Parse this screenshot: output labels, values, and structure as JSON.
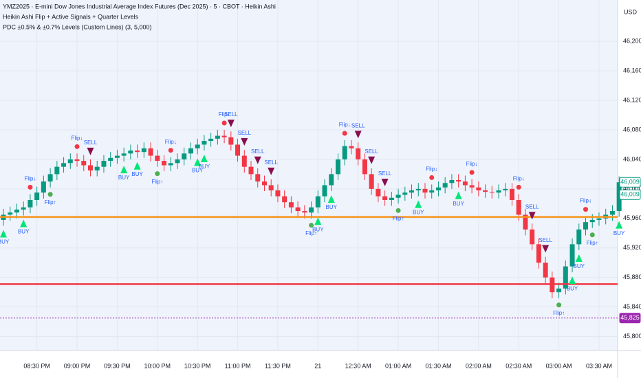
{
  "chart_data": {
    "type": "candlestick",
    "title": "YMZ2025 · E-mini Dow Jones Industrial Average Index Futures (Dec 2025) · 5 · CBOT · Heikin Ashi",
    "indicators": [
      "Heikin Ashi Flip + Active Signals + Quarter Levels",
      "PDC ±0.5% & ±0.7% Levels (Custom Lines) (3, 5,000)"
    ],
    "currency": "USD",
    "categories": [
      null,
      null,
      null,
      null,
      null,
      "08:30 PM",
      null,
      null,
      null,
      null,
      null,
      "09:00 PM",
      null,
      null,
      null,
      null,
      null,
      "09:30 PM",
      null,
      null,
      null,
      null,
      null,
      "10:00 PM",
      null,
      null,
      null,
      null,
      null,
      "10:30 PM",
      null,
      null,
      null,
      null,
      null,
      "11:00 PM",
      null,
      null,
      null,
      null,
      null,
      "11:30 PM",
      null,
      null,
      null,
      null,
      null,
      "21",
      null,
      null,
      null,
      null,
      null,
      "12:30 AM",
      null,
      null,
      null,
      null,
      null,
      "01:00 AM",
      null,
      null,
      null,
      null,
      null,
      "01:30 AM",
      null,
      null,
      null,
      null,
      null,
      "02:00 AM",
      null,
      null,
      null,
      null,
      null,
      "02:30 AM",
      null,
      null,
      null,
      null,
      null,
      "03:00 AM",
      null,
      null,
      null,
      null,
      null,
      "03:30 AM",
      null,
      null,
      null
    ],
    "open": [
      45958,
      45965,
      45968,
      45972,
      45975,
      45985,
      45995,
      46010,
      46020,
      46030,
      46035,
      46040,
      46038,
      46032,
      46025,
      46030,
      46038,
      46042,
      46045,
      46048,
      46052,
      46050,
      46055,
      46045,
      46038,
      46032,
      46035,
      46040,
      46048,
      46055,
      46060,
      46065,
      46068,
      46072,
      46070,
      46060,
      46045,
      46030,
      46020,
      46010,
      46005,
      45998,
      45990,
      45982,
      45975,
      45970,
      45968,
      45975,
      45990,
      46005,
      46020,
      46040,
      46058,
      46055,
      46040,
      46020,
      46000,
      45990,
      45985,
      45988,
      45992,
      45995,
      45998,
      46000,
      45995,
      45998,
      46002,
      46008,
      46012,
      46010,
      46005,
      46002,
      45998,
      45996,
      45995,
      45998,
      46000,
      45985,
      45965,
      45945,
      45925,
      45900,
      45880,
      45860,
      45865,
      45895,
      45925,
      45945,
      45955,
      45958,
      45960,
      45965,
      45970
    ],
    "high": [
      45973,
      45976,
      45980,
      45983,
      45993,
      46003,
      46018,
      46028,
      46038,
      46043,
      46048,
      46048,
      46046,
      46040,
      46038,
      46046,
      46050,
      46053,
      46056,
      46060,
      46060,
      46063,
      46063,
      46053,
      46046,
      46043,
      46048,
      46056,
      46063,
      46068,
      46073,
      46076,
      46080,
      46080,
      46078,
      46068,
      46053,
      46038,
      46028,
      46018,
      46013,
      46006,
      45998,
      45990,
      45983,
      45978,
      45983,
      45998,
      46013,
      46028,
      46048,
      46066,
      46066,
      46063,
      46048,
      46028,
      46008,
      45998,
      45996,
      46000,
      46003,
      46006,
      46008,
      46008,
      46006,
      46010,
      46016,
      46020,
      46020,
      46018,
      46013,
      46010,
      46006,
      46004,
      46006,
      46008,
      46008,
      45993,
      45973,
      45953,
      45933,
      45908,
      45888,
      45873,
      45903,
      45933,
      45953,
      45963,
      45966,
      45968,
      45973,
      45978,
      46017
    ],
    "low": [
      45950,
      45957,
      45960,
      45964,
      45967,
      45977,
      45987,
      46002,
      46012,
      46022,
      46027,
      46030,
      46024,
      46017,
      46017,
      46022,
      46030,
      46034,
      46037,
      46040,
      46042,
      46042,
      46037,
      46030,
      46024,
      46024,
      46027,
      46032,
      46040,
      46047,
      46052,
      46057,
      46060,
      46062,
      46052,
      46037,
      46022,
      46012,
      46002,
      45997,
      45990,
      45982,
      45974,
      45967,
      45962,
      45960,
      45960,
      45967,
      45982,
      45997,
      46012,
      46032,
      46047,
      46032,
      46012,
      45992,
      45982,
      45977,
      45977,
      45980,
      45984,
      45987,
      45990,
      45987,
      45987,
      45990,
      45994,
      46000,
      46002,
      45997,
      45994,
      45990,
      45988,
      45987,
      45987,
      45990,
      45977,
      45957,
      45937,
      45917,
      45892,
      45872,
      45852,
      45852,
      45857,
      45887,
      45917,
      45937,
      45947,
      45950,
      45952,
      45957,
      45962
    ],
    "close": [
      45965,
      45968,
      45972,
      45975,
      45985,
      45995,
      46010,
      46020,
      46030,
      46035,
      46040,
      46038,
      46032,
      46025,
      46030,
      46038,
      46042,
      46045,
      46048,
      46052,
      46050,
      46055,
      46045,
      46038,
      46032,
      46035,
      46040,
      46048,
      46055,
      46060,
      46065,
      46068,
      46072,
      46070,
      46060,
      46045,
      46030,
      46020,
      46010,
      46005,
      45998,
      45990,
      45982,
      45975,
      45970,
      45968,
      45975,
      45990,
      46005,
      46020,
      46040,
      46058,
      46055,
      46040,
      46020,
      46000,
      45990,
      45985,
      45988,
      45992,
      45995,
      45998,
      46000,
      45995,
      45998,
      46002,
      46008,
      46012,
      46010,
      46005,
      46002,
      45998,
      45996,
      45995,
      45998,
      46000,
      45985,
      45965,
      45945,
      45925,
      45900,
      45880,
      45860,
      45865,
      45895,
      45925,
      45945,
      45955,
      45958,
      45960,
      45965,
      45970,
      46009
    ],
    "up_color": "#089981",
    "down_color": "#f23645",
    "ylim": [
      45781,
      46256
    ],
    "yticks": [
      {
        "value": 45800,
        "label": "45,800"
      },
      {
        "value": 45840,
        "label": "45,840"
      },
      {
        "value": 45880,
        "label": "45,880"
      },
      {
        "value": 45920,
        "label": "45,920"
      },
      {
        "value": 45960,
        "label": "45,960"
      },
      {
        "value": 46000,
        "label": "46,000"
      },
      {
        "value": 46040,
        "label": "46,040"
      },
      {
        "value": 46080,
        "label": "46,080"
      },
      {
        "value": 46120,
        "label": "46,120"
      },
      {
        "value": 46160,
        "label": "46,160"
      },
      {
        "value": 46200,
        "label": "46,200"
      }
    ],
    "grid": true,
    "levels": [
      {
        "value": 45962,
        "color": "#f7931a"
      },
      {
        "value": 45871,
        "color": "#f23645"
      },
      {
        "value": 45825,
        "color": "#9c27b0"
      }
    ],
    "price_labels": [
      {
        "value": 46009,
        "label": "46,009",
        "color": "#089981"
      },
      {
        "value": 46009,
        "label": "46,009",
        "color": "#089981"
      },
      {
        "value": 45825,
        "label": "45,825",
        "color": "#9c27b0"
      }
    ],
    "signals": [
      {
        "candle": 0,
        "text": "BUY"
      },
      {
        "candle": 3,
        "text": "BUY"
      },
      {
        "candle": 4,
        "text": "Flip↓"
      },
      {
        "candle": 7,
        "text": "Flip↑"
      },
      {
        "candle": 11,
        "text": "Flip↓"
      },
      {
        "candle": 13,
        "text": "SELL"
      },
      {
        "candle": 18,
        "text": "BUY"
      },
      {
        "candle": 20,
        "text": "BUY"
      },
      {
        "candle": 23,
        "text": "Flip↑"
      },
      {
        "candle": 25,
        "text": "Flip↓"
      },
      {
        "candle": 29,
        "text": "BUY"
      },
      {
        "candle": 30,
        "text": "BUY"
      },
      {
        "candle": 33,
        "text": "Flip↓"
      },
      {
        "candle": 34,
        "text": "SELL"
      },
      {
        "candle": 36,
        "text": "SELL"
      },
      {
        "candle": 38,
        "text": "SELL"
      },
      {
        "candle": 40,
        "text": "SELL"
      },
      {
        "candle": 46,
        "text": "Flip↑"
      },
      {
        "candle": 47,
        "text": "BUY"
      },
      {
        "candle": 49,
        "text": "BUY"
      },
      {
        "candle": 51,
        "text": "Flip↓"
      },
      {
        "candle": 53,
        "text": "SELL"
      },
      {
        "candle": 55,
        "text": "SELL"
      },
      {
        "candle": 57,
        "text": "SELL"
      },
      {
        "candle": 59,
        "text": "Flip↑"
      },
      {
        "candle": 62,
        "text": "BUY"
      },
      {
        "candle": 64,
        "text": "Flip↓"
      },
      {
        "candle": 68,
        "text": "BUY"
      },
      {
        "candle": 70,
        "text": "Flip↓"
      },
      {
        "candle": 77,
        "text": "Flip↓"
      },
      {
        "candle": 79,
        "text": "SELL"
      },
      {
        "candle": 81,
        "text": "SELL"
      },
      {
        "candle": 83,
        "text": "Flip↑"
      },
      {
        "candle": 85,
        "text": "BUY"
      },
      {
        "candle": 86,
        "text": "BUY"
      },
      {
        "candle": 87,
        "text": "Flip↓"
      },
      {
        "candle": 88,
        "text": "Flip↑"
      },
      {
        "candle": 92,
        "text": "BUY"
      }
    ]
  }
}
